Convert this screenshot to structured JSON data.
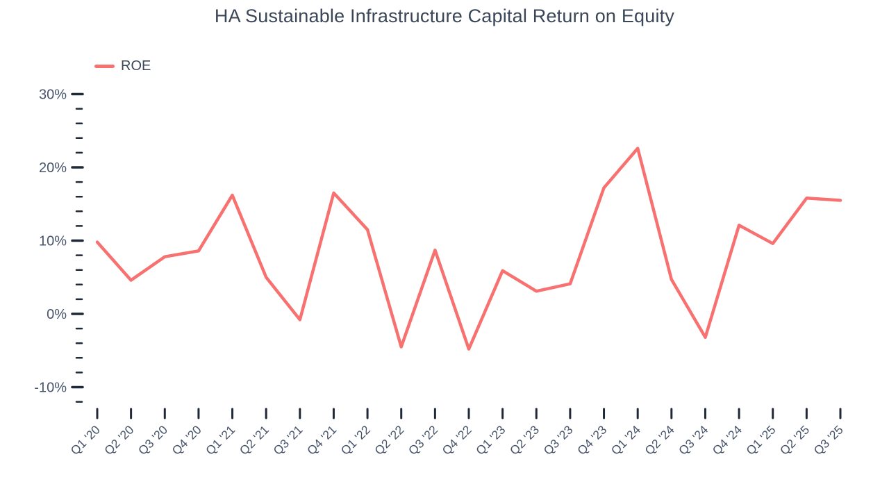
{
  "title": "HA Sustainable Infrastructure Capital Return on Equity",
  "legend": {
    "label": "ROE",
    "color": "#F87171"
  },
  "chart_data": {
    "type": "line",
    "title": "HA Sustainable Infrastructure Capital Return on Equity",
    "xlabel": "",
    "ylabel": "",
    "ylim": [
      -13,
      31
    ],
    "grid": false,
    "legend_position": "top-left",
    "categories": [
      "Q1 '20",
      "Q2 '20",
      "Q3 '20",
      "Q4 '20",
      "Q1 '21",
      "Q2 '21",
      "Q3 '21",
      "Q4 '21",
      "Q1 '22",
      "Q2 '22",
      "Q3 '22",
      "Q4 '22",
      "Q1 '23",
      "Q2 '23",
      "Q3 '23",
      "Q4 '23",
      "Q1 '24",
      "Q2 '24",
      "Q3 '24",
      "Q4 '24",
      "Q1 '25",
      "Q2 '25",
      "Q3 '25"
    ],
    "series": [
      {
        "name": "ROE",
        "color": "#F87171",
        "values": [
          9.8,
          4.6,
          7.8,
          8.6,
          16.2,
          5.0,
          -0.8,
          16.5,
          11.5,
          -4.5,
          8.7,
          -4.8,
          5.9,
          3.1,
          4.1,
          17.2,
          22.6,
          4.7,
          -3.2,
          12.1,
          9.6,
          15.8,
          15.5
        ]
      }
    ],
    "y_major_ticks": [
      {
        "label": "30%",
        "value": 30
      },
      {
        "label": "20%",
        "value": 20
      },
      {
        "label": "10%",
        "value": 10
      },
      {
        "label": "0%",
        "value": 0
      },
      {
        "label": "-10%",
        "value": -10
      }
    ],
    "y_minor_ticks": [
      28,
      26,
      24,
      22,
      18,
      16,
      14,
      12,
      8,
      6,
      4,
      2,
      -2,
      -4,
      -6,
      -8,
      -12
    ]
  },
  "colors": {
    "line": "#F87171",
    "tick": "#1f2937",
    "axis_label": "#47546a",
    "title": "#3b4757",
    "background": "#ffffff"
  }
}
